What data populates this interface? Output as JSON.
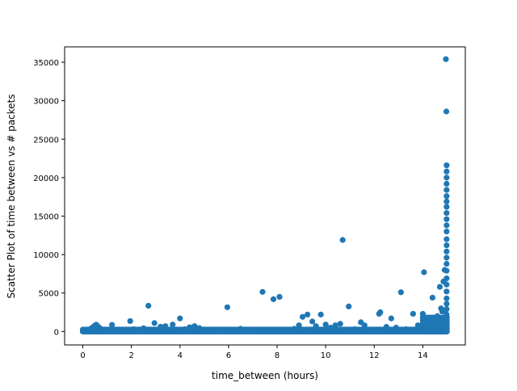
{
  "chart_data": {
    "type": "scatter",
    "xlabel": "time_between (hours)",
    "ylabel": "Scatter Plot of time between vs # packets",
    "xlim": [
      -0.75,
      15.75
    ],
    "ylim": [
      -1750,
      37000
    ],
    "x_ticks": [
      0,
      2,
      4,
      6,
      8,
      10,
      12,
      14
    ],
    "y_ticks": [
      0,
      5000,
      10000,
      15000,
      20000,
      25000,
      30000,
      35000
    ],
    "grid": false,
    "legend": "none",
    "marker_color": "#1f77b4",
    "points": [
      [
        0.0,
        120
      ],
      [
        0.05,
        60
      ],
      [
        0.1,
        180
      ],
      [
        0.15,
        90
      ],
      [
        0.2,
        240
      ],
      [
        0.25,
        150
      ],
      [
        0.3,
        300
      ],
      [
        0.35,
        420
      ],
      [
        0.4,
        500
      ],
      [
        0.45,
        650
      ],
      [
        0.5,
        780
      ],
      [
        0.55,
        880
      ],
      [
        0.6,
        720
      ],
      [
        0.65,
        560
      ],
      [
        0.7,
        430
      ],
      [
        0.75,
        320
      ],
      [
        0.8,
        250
      ],
      [
        0.9,
        180
      ],
      [
        1.0,
        140
      ],
      [
        1.1,
        100
      ],
      [
        1.2,
        860
      ],
      [
        1.3,
        220
      ],
      [
        1.5,
        130
      ],
      [
        1.7,
        90
      ],
      [
        1.95,
        1350
      ],
      [
        2.1,
        300
      ],
      [
        2.3,
        180
      ],
      [
        2.5,
        420
      ],
      [
        2.7,
        3350
      ],
      [
        2.85,
        200
      ],
      [
        2.95,
        1100
      ],
      [
        3.2,
        620
      ],
      [
        3.4,
        700
      ],
      [
        3.7,
        900
      ],
      [
        4.0,
        1700
      ],
      [
        4.2,
        300
      ],
      [
        4.4,
        550
      ],
      [
        4.6,
        700
      ],
      [
        4.8,
        450
      ],
      [
        5.0,
        250
      ],
      [
        5.3,
        150
      ],
      [
        5.6,
        120
      ],
      [
        5.95,
        3150
      ],
      [
        6.2,
        200
      ],
      [
        6.5,
        350
      ],
      [
        6.8,
        120
      ],
      [
        7.0,
        160
      ],
      [
        7.4,
        5150
      ],
      [
        7.6,
        200
      ],
      [
        7.85,
        4200
      ],
      [
        8.1,
        4500
      ],
      [
        8.4,
        180
      ],
      [
        8.7,
        350
      ],
      [
        8.9,
        800
      ],
      [
        9.05,
        1900
      ],
      [
        9.25,
        2200
      ],
      [
        9.45,
        1300
      ],
      [
        9.6,
        700
      ],
      [
        9.8,
        2200
      ],
      [
        10.0,
        900
      ],
      [
        10.2,
        500
      ],
      [
        10.4,
        800
      ],
      [
        10.6,
        1000
      ],
      [
        10.7,
        11900
      ],
      [
        10.95,
        3250
      ],
      [
        11.2,
        300
      ],
      [
        11.45,
        1200
      ],
      [
        11.6,
        800
      ],
      [
        11.9,
        200
      ],
      [
        12.2,
        2300
      ],
      [
        12.25,
        2500
      ],
      [
        12.5,
        600
      ],
      [
        12.7,
        1700
      ],
      [
        12.9,
        500
      ],
      [
        13.1,
        5100
      ],
      [
        13.3,
        300
      ],
      [
        13.6,
        2300
      ],
      [
        13.8,
        800
      ],
      [
        14.0,
        2300
      ],
      [
        14.05,
        7700
      ],
      [
        14.2,
        900
      ],
      [
        14.4,
        4400
      ],
      [
        14.5,
        1500
      ],
      [
        14.6,
        2000
      ],
      [
        14.7,
        5800
      ],
      [
        14.75,
        3000
      ],
      [
        14.8,
        2600
      ],
      [
        14.85,
        6500
      ],
      [
        14.9,
        8000
      ],
      [
        14.95,
        35400
      ],
      [
        14.97,
        28600
      ],
      [
        14.98,
        21600
      ],
      [
        14.98,
        20800
      ],
      [
        14.98,
        20000
      ],
      [
        14.98,
        19200
      ],
      [
        14.98,
        18400
      ],
      [
        14.98,
        17600
      ],
      [
        14.98,
        16900
      ],
      [
        14.98,
        16200
      ],
      [
        14.98,
        15400
      ],
      [
        14.98,
        14600
      ],
      [
        14.98,
        13800
      ],
      [
        14.98,
        13000
      ],
      [
        14.98,
        12000
      ],
      [
        14.98,
        11200
      ],
      [
        14.98,
        10400
      ],
      [
        14.98,
        9600
      ],
      [
        14.98,
        8800
      ],
      [
        14.98,
        7900
      ],
      [
        14.98,
        6900
      ],
      [
        14.98,
        6100
      ],
      [
        14.98,
        5200
      ],
      [
        14.98,
        4300
      ],
      [
        14.98,
        3600
      ],
      [
        14.98,
        2900
      ],
      [
        14.98,
        2200
      ],
      [
        14.98,
        1500
      ],
      [
        14.98,
        900
      ],
      [
        14.98,
        300
      ]
    ],
    "dense_bands": [
      {
        "x": [
          0.0,
          15.0
        ],
        "y": [
          0,
          250
        ]
      },
      {
        "x": [
          14.0,
          15.0
        ],
        "y": [
          0,
          1800
        ]
      }
    ]
  }
}
